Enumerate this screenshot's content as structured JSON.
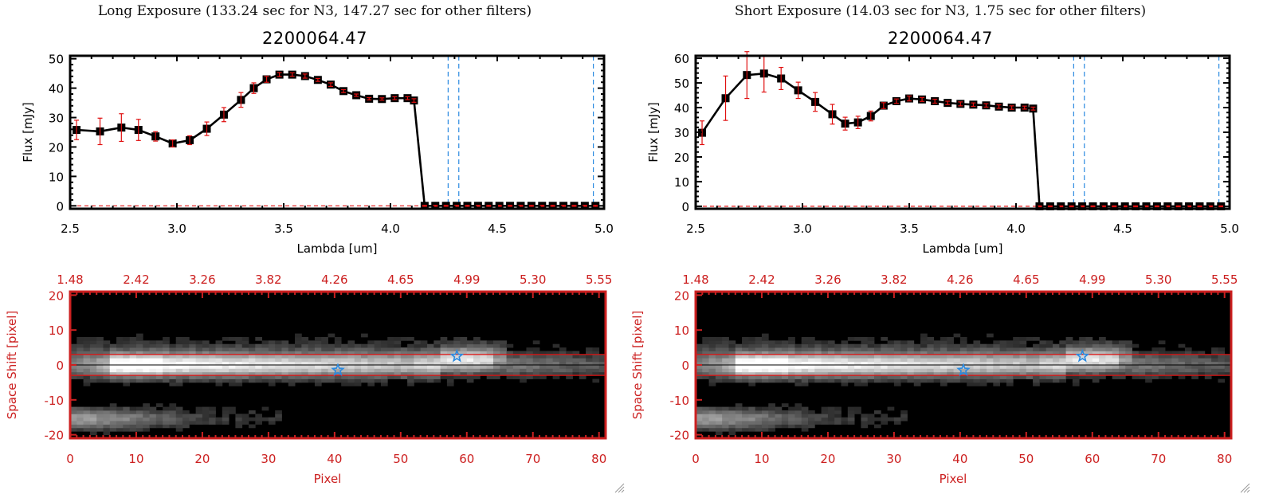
{
  "window": {
    "resize_grip_icon": "resize-grip-icon"
  },
  "panels": [
    {
      "id": "long",
      "exposure_title": "Long Exposure (133.24 sec for N3, 147.27 sec for other filters)",
      "object_id": "2200064.47"
    },
    {
      "id": "short",
      "exposure_title": "Short Exposure (14.03 sec for N3, 1.75 sec for other filters)",
      "object_id": "2200064.47"
    }
  ],
  "colors": {
    "line": "#000000",
    "marker": "#000000",
    "errorbar": "#e01010",
    "zero_line": "#e01010",
    "filter_lines": "#2a8ae0",
    "image_axes": "#cc2020",
    "aperture_lines": "#e01010",
    "center_line": "#000000",
    "star_markers": "#2a8ae0"
  },
  "chart_data": [
    {
      "type": "line",
      "title": "2200064.47",
      "xlabel": "Lambda [um]",
      "ylabel": "Flux [mJy]",
      "xlim": [
        2.5,
        5.0
      ],
      "ylim": [
        -1,
        51
      ],
      "xticks": [
        2.5,
        3.0,
        3.5,
        4.0,
        4.5,
        5.0
      ],
      "xtick_labels": [
        "2.5",
        "3.0",
        "3.5",
        "4.0",
        "4.5",
        "5.0"
      ],
      "yticks": [
        0,
        10,
        20,
        30,
        40,
        50
      ],
      "ytick_labels": [
        "0",
        "10",
        "20",
        "30",
        "40",
        "50"
      ],
      "vlines": [
        4.27,
        4.32,
        4.95
      ],
      "hline": 0,
      "series": [
        {
          "name": "flux",
          "x": [
            2.53,
            2.64,
            2.74,
            2.82,
            2.9,
            2.98,
            3.06,
            3.14,
            3.22,
            3.3,
            3.36,
            3.42,
            3.48,
            3.54,
            3.6,
            3.66,
            3.72,
            3.78,
            3.84,
            3.9,
            3.96,
            4.02,
            4.08,
            4.11,
            4.16,
            4.21,
            4.26,
            4.31,
            4.36,
            4.41,
            4.46,
            4.51,
            4.56,
            4.61,
            4.66,
            4.71,
            4.76,
            4.81,
            4.86,
            4.91,
            4.96
          ],
          "y": [
            25.8,
            25.3,
            26.6,
            25.8,
            23.6,
            21.2,
            22.3,
            26.2,
            31.0,
            36.0,
            40.0,
            43.0,
            44.6,
            44.6,
            44.1,
            42.8,
            41.2,
            39.0,
            37.6,
            36.4,
            36.3,
            36.6,
            36.6,
            35.8,
            0,
            0,
            0,
            0,
            0,
            0,
            0,
            0,
            0,
            0,
            0,
            0,
            0,
            0,
            0,
            0,
            0
          ],
          "err": [
            3.3,
            4.5,
            4.7,
            3.6,
            1.6,
            1.2,
            1.5,
            2.3,
            2.4,
            2.5,
            1.8,
            1.0,
            0.7,
            0.6,
            0.7,
            0.5,
            0.6,
            0.5,
            0.4,
            0.4,
            0.4,
            0.5,
            0.5,
            0.6,
            0.2,
            0.2,
            0.2,
            0.2,
            0.2,
            0.2,
            0.2,
            0.2,
            0.2,
            0.2,
            0.2,
            0.2,
            0.2,
            0.2,
            0.2,
            0.2,
            0.2
          ]
        }
      ]
    },
    {
      "type": "line",
      "title": "2200064.47",
      "xlabel": "Lambda [um]",
      "ylabel": "Flux [mJy]",
      "xlim": [
        2.5,
        5.0
      ],
      "ylim": [
        -1,
        61
      ],
      "xticks": [
        2.5,
        3.0,
        3.5,
        4.0,
        4.5,
        5.0
      ],
      "xtick_labels": [
        "2.5",
        "3.0",
        "3.5",
        "4.0",
        "4.5",
        "5.0"
      ],
      "yticks": [
        0,
        10,
        20,
        30,
        40,
        50,
        60
      ],
      "ytick_labels": [
        "0",
        "10",
        "20",
        "30",
        "40",
        "50",
        "60"
      ],
      "vlines": [
        4.27,
        4.32,
        4.95
      ],
      "hline": 0,
      "series": [
        {
          "name": "flux",
          "x": [
            2.53,
            2.64,
            2.74,
            2.82,
            2.9,
            2.98,
            3.06,
            3.14,
            3.2,
            3.26,
            3.32,
            3.38,
            3.44,
            3.5,
            3.56,
            3.62,
            3.68,
            3.74,
            3.8,
            3.86,
            3.92,
            3.98,
            4.04,
            4.08,
            4.11,
            4.16,
            4.21,
            4.26,
            4.31,
            4.36,
            4.41,
            4.46,
            4.51,
            4.56,
            4.61,
            4.66,
            4.71,
            4.76,
            4.81,
            4.86,
            4.91,
            4.96
          ],
          "y": [
            29.8,
            43.8,
            53.2,
            53.8,
            51.8,
            47.0,
            42.3,
            37.3,
            33.5,
            34.0,
            36.6,
            40.8,
            42.6,
            43.7,
            43.3,
            42.6,
            41.9,
            41.5,
            41.2,
            40.9,
            40.4,
            40.0,
            40.0,
            39.6,
            0,
            0,
            0,
            0,
            0,
            0,
            0,
            0,
            0,
            0,
            0,
            0,
            0,
            0,
            0,
            0,
            0,
            0
          ],
          "err": [
            4.8,
            9.0,
            9.5,
            7.5,
            4.5,
            3.3,
            3.8,
            4.0,
            2.6,
            2.5,
            2.0,
            1.2,
            0.9,
            1.0,
            0.8,
            0.8,
            0.7,
            0.8,
            0.7,
            0.7,
            0.7,
            0.7,
            0.6,
            0.6,
            0.2,
            0.2,
            0.2,
            0.2,
            0.2,
            0.2,
            0.2,
            0.2,
            0.2,
            0.2,
            0.2,
            0.2,
            0.2,
            0.2,
            0.2,
            0.2,
            0.2,
            0.2
          ]
        }
      ]
    },
    {
      "type": "heatmap",
      "xlabel": "Pixel",
      "ylabel": "Space Shift [pixel]",
      "xlim": [
        0,
        81
      ],
      "ylim": [
        -21,
        21
      ],
      "xticks": [
        0,
        10,
        20,
        30,
        40,
        50,
        60,
        70,
        80
      ],
      "xtick_labels": [
        "0",
        "10",
        "20",
        "30",
        "40",
        "50",
        "60",
        "70",
        "80"
      ],
      "yticks": [
        -20,
        -10,
        0,
        10,
        20
      ],
      "ytick_labels": [
        "-20",
        "-10",
        "0",
        "10",
        "20"
      ],
      "top_tick_labels": [
        "1.48",
        "2.42",
        "3.26",
        "3.82",
        "4.26",
        "4.65",
        "4.99",
        "5.30",
        "5.55"
      ],
      "aperture_y": [
        3,
        -3
      ],
      "center_y": 0,
      "stars": [
        {
          "x": 40.5,
          "y": -1.5
        },
        {
          "x": 58.5,
          "y": 2.5
        }
      ]
    },
    {
      "type": "heatmap",
      "xlabel": "Pixel",
      "ylabel": "Space Shift [pixel]",
      "xlim": [
        0,
        81
      ],
      "ylim": [
        -21,
        21
      ],
      "xticks": [
        0,
        10,
        20,
        30,
        40,
        50,
        60,
        70,
        80
      ],
      "xtick_labels": [
        "0",
        "10",
        "20",
        "30",
        "40",
        "50",
        "60",
        "70",
        "80"
      ],
      "yticks": [
        -20,
        -10,
        0,
        10,
        20
      ],
      "ytick_labels": [
        "-20",
        "-10",
        "0",
        "10",
        "20"
      ],
      "top_tick_labels": [
        "1.48",
        "2.42",
        "3.26",
        "3.82",
        "4.26",
        "4.65",
        "4.99",
        "5.30",
        "5.55"
      ],
      "aperture_y": [
        3,
        -3
      ],
      "center_y": 0,
      "stars": [
        {
          "x": 40.5,
          "y": -1.5
        },
        {
          "x": 58.5,
          "y": 2.5
        }
      ]
    }
  ]
}
